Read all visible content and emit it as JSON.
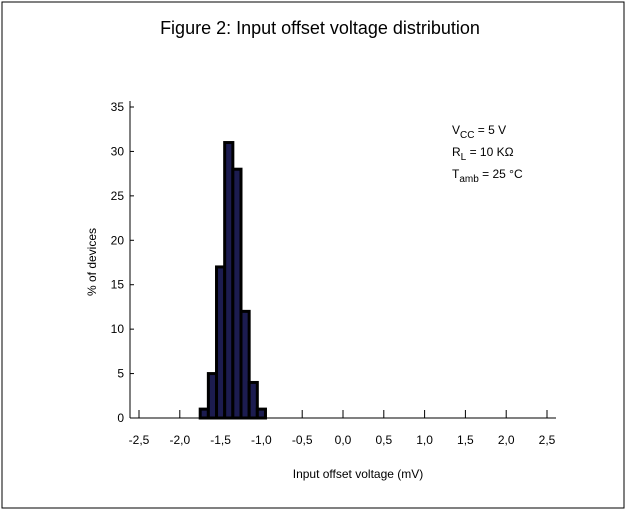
{
  "chart_data": {
    "type": "histogram",
    "title": "Figure 2: Input offset voltage distribution",
    "xlabel": "Input offset voltage (mV)",
    "ylabel": "% of devices",
    "bins": [
      -1.75,
      -1.65,
      -1.55,
      -1.45,
      -1.35,
      -1.25,
      -1.15,
      -1.05,
      -0.95
    ],
    "values": [
      1,
      5,
      17,
      31,
      28,
      12,
      4,
      1
    ],
    "color": "#1c1c50",
    "xlim": [
      -2.5,
      2.5
    ],
    "xticks": [
      {
        "value": -2.5,
        "label": "-2,5"
      },
      {
        "value": -2,
        "label": "-2,0"
      },
      {
        "value": -1.5,
        "label": "-1,5"
      },
      {
        "value": -1,
        "label": "-1,0"
      },
      {
        "value": -0.5,
        "label": "-0,5"
      },
      {
        "value": 0,
        "label": "0,0"
      },
      {
        "value": 0.5,
        "label": "0,5"
      },
      {
        "value": 1,
        "label": "1,0"
      },
      {
        "value": 1.5,
        "label": "1,5"
      },
      {
        "value": 2,
        "label": "2,0"
      },
      {
        "value": 2.5,
        "label": "2,5"
      }
    ],
    "ylim": [
      0,
      35
    ],
    "yticks": [
      0,
      5,
      10,
      15,
      20,
      25,
      30,
      35
    ],
    "annotations": [
      {
        "main": "V",
        "sub": "CC",
        "rest": " = 5 V"
      },
      {
        "main": "R",
        "sub": "L",
        "rest": " = 10 KΩ"
      },
      {
        "main": "T",
        "sub": "amb",
        "rest": " = 25 °C"
      }
    ]
  }
}
